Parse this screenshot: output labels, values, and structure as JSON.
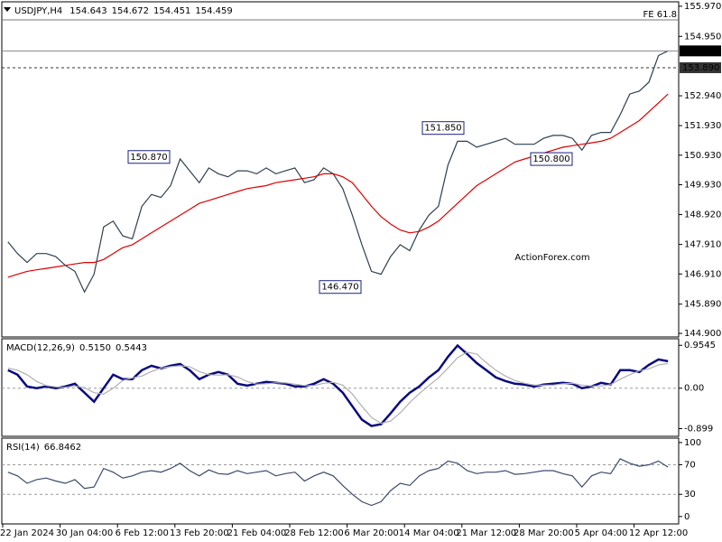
{
  "chart_data": [
    {
      "type": "line",
      "title": "USDJPY,H4",
      "header_values": [
        154.643,
        154.672,
        154.451,
        154.459
      ],
      "watermark": "ActionForex.com",
      "ylim": [
        144.78,
        156.12
      ],
      "yticks": [
        {
          "value": 155.97,
          "label": "155.970"
        },
        {
          "value": 154.95,
          "label": "154.950"
        },
        {
          "value": 152.94,
          "label": "152.940"
        },
        {
          "value": 151.93,
          "label": "151.930"
        },
        {
          "value": 150.93,
          "label": "150.930"
        },
        {
          "value": 149.93,
          "label": "149.930"
        },
        {
          "value": 148.92,
          "label": "148.920"
        },
        {
          "value": 147.91,
          "label": "147.910"
        },
        {
          "value": 146.91,
          "label": "146.910"
        },
        {
          "value": 145.89,
          "label": "145.890"
        },
        {
          "value": 144.9,
          "label": "144.900"
        }
      ],
      "price_lines": [
        154.459,
        {
          "value": 153.89,
          "label": "153.890"
        }
      ],
      "fib_level": {
        "value": 155.51,
        "label": "FE 61.8"
      },
      "annotations": [
        {
          "value": 150.87,
          "label": "150.870"
        },
        {
          "value": 151.85,
          "label": "151.850"
        },
        {
          "value": 146.47,
          "label": "146.470"
        },
        {
          "value": 150.8,
          "label": "150.800"
        }
      ],
      "series": [
        {
          "color": "#2f3f4f",
          "values": [
            148.0,
            147.6,
            147.3,
            147.6,
            147.6,
            147.5,
            147.2,
            147.0,
            146.3,
            146.9,
            148.5,
            148.7,
            148.2,
            148.1,
            149.2,
            149.6,
            149.5,
            149.9,
            150.8,
            150.4,
            150.0,
            150.5,
            150.3,
            150.2,
            150.4,
            150.4,
            150.3,
            150.5,
            150.3,
            150.4,
            150.5,
            150.0,
            150.1,
            150.5,
            150.3,
            149.8,
            148.9,
            147.9,
            147.0,
            146.9,
            147.5,
            147.9,
            147.7,
            148.4,
            148.9,
            149.2,
            150.6,
            151.4,
            151.4,
            151.2,
            151.3,
            151.4,
            151.5,
            151.3,
            151.3,
            151.3,
            151.5,
            151.6,
            151.6,
            151.5,
            151.1,
            151.6,
            151.7,
            151.7,
            152.3,
            153.0,
            153.1,
            153.4,
            154.3,
            154.459
          ]
        },
        {
          "color": "#e00000",
          "values": [
            146.8,
            146.9,
            147.0,
            147.05,
            147.1,
            147.15,
            147.2,
            147.25,
            147.3,
            147.3,
            147.4,
            147.6,
            147.8,
            147.9,
            148.1,
            148.3,
            148.5,
            148.7,
            148.9,
            149.1,
            149.3,
            149.4,
            149.5,
            149.6,
            149.7,
            149.8,
            149.85,
            149.9,
            150.0,
            150.05,
            150.1,
            150.15,
            150.2,
            150.3,
            150.3,
            150.2,
            150.0,
            149.6,
            149.2,
            148.85,
            148.6,
            148.4,
            148.3,
            148.35,
            148.5,
            148.7,
            149.0,
            149.3,
            149.6,
            149.9,
            150.1,
            150.3,
            150.5,
            150.7,
            150.8,
            150.9,
            151.0,
            151.1,
            151.2,
            151.25,
            151.3,
            151.35,
            151.4,
            151.5,
            151.7,
            151.9,
            152.1,
            152.4,
            152.7,
            153.0
          ]
        }
      ]
    },
    {
      "type": "line",
      "title": "MACD(12,26,9)",
      "header_values": [
        {
          "value": 0.515,
          "label": "0.5150"
        },
        0.5443
      ],
      "ylim": [
        -1.07,
        1.1
      ],
      "yticks": [
        0.9545,
        {
          "value": 0,
          "label": "0.00"
        },
        -0.899
      ],
      "levels": [
        0
      ],
      "series": [
        {
          "color": "#0a0a80",
          "values": [
            0.4,
            0.3,
            0.04,
            0,
            0.04,
            0,
            0.04,
            0.1,
            -0.1,
            -0.3,
            0,
            0.3,
            0.2,
            0.2,
            0.4,
            0.5,
            0.44,
            0.5,
            0.54,
            0.4,
            0.2,
            0.3,
            0.36,
            0.3,
            0.1,
            0.06,
            0.1,
            0.14,
            0.12,
            0.1,
            0.04,
            0.04,
            0.1,
            0.2,
            0.1,
            -0.1,
            -0.4,
            -0.7,
            -0.84,
            -0.8,
            -0.56,
            -0.3,
            -0.1,
            0.04,
            0.24,
            0.4,
            0.7,
            0.95,
            0.76,
            0.56,
            0.4,
            0.24,
            0.16,
            0.1,
            0.08,
            0.04,
            0.08,
            0.1,
            0.12,
            0.1,
            0,
            0.04,
            0.12,
            0.08,
            0.4,
            0.4,
            0.36,
            0.52,
            0.64,
            0.6
          ]
        },
        {
          "color": "#b0b0b0",
          "values": [
            0.45,
            0.4,
            0.3,
            0.15,
            0.06,
            0.03,
            0.02,
            0.05,
            0.01,
            -0.1,
            -0.13,
            0,
            0.17,
            0.23,
            0.27,
            0.37,
            0.45,
            0.48,
            0.5,
            0.48,
            0.37,
            0.3,
            0.29,
            0.3,
            0.25,
            0.15,
            0.09,
            0.1,
            0.12,
            0.12,
            0.09,
            0.06,
            0.06,
            0.11,
            0.13,
            0.07,
            -0.13,
            -0.4,
            -0.65,
            -0.78,
            -0.73,
            -0.55,
            -0.32,
            -0.12,
            0.06,
            0.23,
            0.45,
            0.68,
            0.8,
            0.76,
            0.57,
            0.4,
            0.27,
            0.17,
            0.11,
            0.07,
            0.07,
            0.07,
            0.1,
            0.11,
            0.07,
            0.05,
            0.05,
            0.08,
            0.2,
            0.3,
            0.39,
            0.43,
            0.52,
            0.55
          ]
        }
      ]
    },
    {
      "type": "line",
      "title": "RSI(14)",
      "header_values": [
        66.8462
      ],
      "ylim": [
        -10,
        106
      ],
      "yticks": [
        100,
        70,
        30,
        0
      ],
      "levels": [
        70,
        30
      ],
      "categories": [
        null,
        null,
        "22 Jan 2024",
        null,
        null,
        null,
        null,
        null,
        "30 Jan 04:00",
        null,
        null,
        null,
        null,
        null,
        "6 Feb 12:00",
        null,
        null,
        null,
        null,
        null,
        "13 Feb 20:00",
        null,
        null,
        null,
        null,
        null,
        "21 Feb 04:00",
        null,
        null,
        null,
        null,
        null,
        "28 Feb 12:00",
        null,
        null,
        null,
        null,
        null,
        "6 Mar 20:00",
        null,
        null,
        null,
        null,
        null,
        "14 Mar 04:00",
        null,
        null,
        null,
        null,
        null,
        "21 Mar 12:00",
        null,
        null,
        null,
        null,
        null,
        "28 Mar 20:00",
        null,
        null,
        null,
        null,
        null,
        "5 Apr 04:00",
        null,
        null,
        null,
        null,
        null,
        "12 Apr 12:00",
        null
      ],
      "series": [
        {
          "color": "#3b4a6b",
          "values": [
            60,
            55,
            45,
            50,
            52,
            48,
            45,
            50,
            38,
            40,
            65,
            60,
            52,
            55,
            60,
            62,
            60,
            65,
            72,
            62,
            55,
            63,
            58,
            57,
            62,
            58,
            60,
            62,
            55,
            58,
            60,
            48,
            55,
            60,
            55,
            42,
            30,
            20,
            15,
            20,
            35,
            45,
            42,
            55,
            62,
            65,
            75,
            72,
            62,
            58,
            60,
            60,
            62,
            57,
            58,
            60,
            62,
            62,
            58,
            55,
            40,
            55,
            60,
            58,
            78,
            72,
            68,
            70,
            75,
            66.8
          ]
        }
      ]
    }
  ]
}
